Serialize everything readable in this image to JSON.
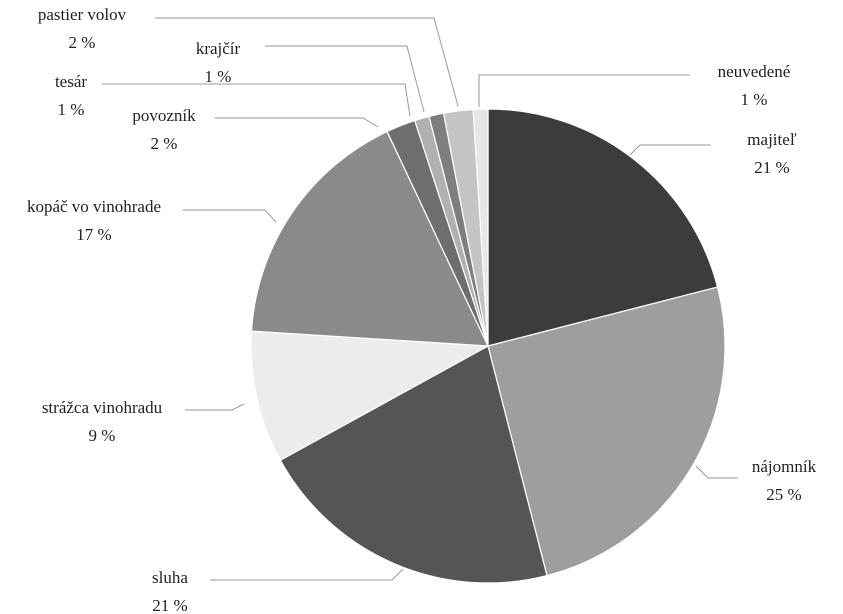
{
  "chart_data": {
    "type": "pie",
    "title": "",
    "slices": [
      {
        "label": "majiteľ",
        "percent_label": "21 %",
        "value": 21,
        "color": "#3c3c3c"
      },
      {
        "label": "nájomník",
        "percent_label": "25 %",
        "value": 25,
        "color": "#9e9e9e"
      },
      {
        "label": "sluha",
        "percent_label": "21 %",
        "value": 21,
        "color": "#555555"
      },
      {
        "label": "strážca vinohradu",
        "percent_label": "9 %",
        "value": 9,
        "color": "#ececec"
      },
      {
        "label": "kopáč vo vinohrade",
        "percent_label": "17 %",
        "value": 17,
        "color": "#8a8a8a"
      },
      {
        "label": "povozník",
        "percent_label": "2 %",
        "value": 2,
        "color": "#6e6e6e"
      },
      {
        "label": "tesár",
        "percent_label": "1 %",
        "value": 1,
        "color": "#b0b0b0"
      },
      {
        "label": "krajčír",
        "percent_label": "1 %",
        "value": 1,
        "color": "#7e7e7e"
      },
      {
        "label": "pastier volov",
        "percent_label": "2 %",
        "value": 2,
        "color": "#c4c4c4"
      },
      {
        "label": "neuvedené",
        "percent_label": "1 %",
        "value": 1,
        "color": "#e6e6e6"
      }
    ],
    "start": "12 o'clock",
    "direction": "clockwise",
    "legend": "none"
  }
}
